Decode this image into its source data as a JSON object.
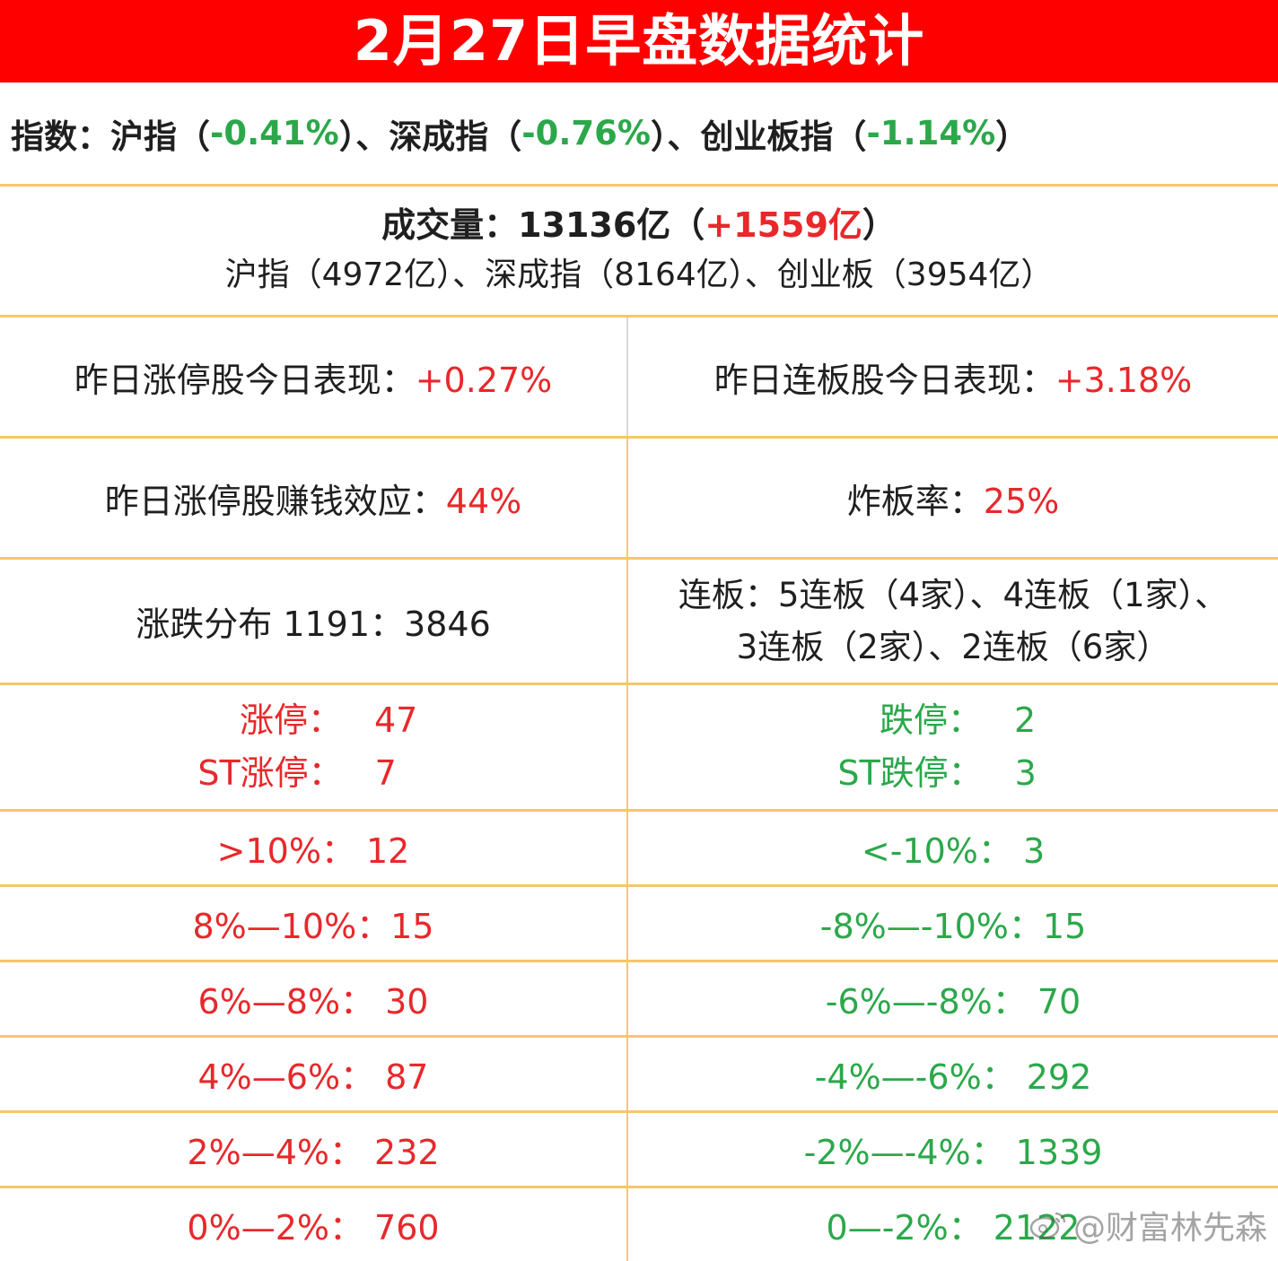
{
  "title": "2月27日早盘数据统计",
  "indices": {
    "prefix": "指数：",
    "sh_label": "沪指（",
    "sh_value": "-0.41%",
    "sh_close": "）、",
    "sz_label": "深成指（",
    "sz_value": "-0.76%",
    "sz_close": "）、",
    "cy_label": "创业板指（",
    "cy_value": "-1.14%",
    "cy_close": "）"
  },
  "volume": {
    "label": "成交量：",
    "total": "13136亿",
    "open": "（",
    "change": "+1559亿",
    "close": "）",
    "breakdown": "沪指（4972亿）、深成指（8164亿）、创业板（3954亿）"
  },
  "performance": {
    "limit_up_label": "昨日涨停股今日表现：",
    "limit_up_value": "+0.27%",
    "consecutive_label": "昨日连板股今日表现：",
    "consecutive_value": "+3.18%"
  },
  "effects": {
    "money_label": "昨日涨停股赚钱效应：",
    "money_value": "44%",
    "break_label": "炸板率：",
    "break_value": "25%"
  },
  "distribution": {
    "text": "涨跌分布 1191：3846",
    "boards_line1": "连板：5连板（4家）、4连板（1家）、",
    "boards_line2": "3连板（2家）、2连板（6家）"
  },
  "limits": {
    "up_label": "涨停：",
    "up_value": "47",
    "st_up_label": "ST涨停：",
    "st_up_value": "7",
    "down_label": "跌停：",
    "down_value": "2",
    "st_down_label": "ST跌停：",
    "st_down_value": "3"
  },
  "ranges": [
    {
      "up": ">10%：  12",
      "down": "<-10%：   3"
    },
    {
      "up": "8%—10%：15",
      "down": "-8%—-10%：15"
    },
    {
      "up": "6%—8%：  30",
      "down": "-6%—-8%：   70"
    },
    {
      "up": "4%—6%：  87",
      "down": "-4%—-6%：   292"
    },
    {
      "up": "2%—4%：  232",
      "down": "-2%—-4%：   1339"
    },
    {
      "up": "0%—2%：  760",
      "down": "0—-2%：   2122"
    }
  ],
  "watermark": "@财富林先森",
  "colors": {
    "title_bg": "#ff0000",
    "up": "#e8282b",
    "down": "#2ba84a",
    "border": "#f5c76a"
  }
}
